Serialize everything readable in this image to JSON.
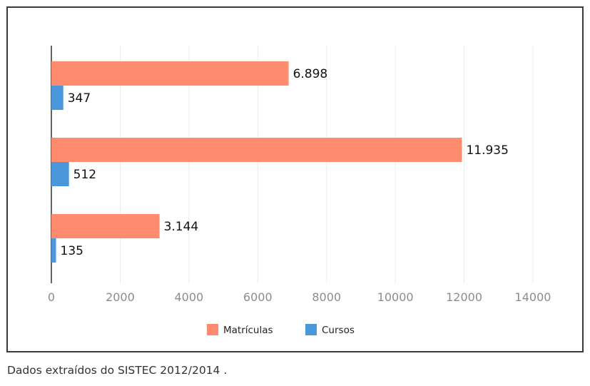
{
  "chart_data": {
    "type": "bar",
    "orientation": "horizontal",
    "title": "",
    "xlabel": "",
    "ylabel": "",
    "categories": [
      "",
      "",
      ""
    ],
    "series": [
      {
        "name": "Matrículas",
        "color": "#ff8c6e",
        "values": [
          6898,
          11935,
          3144
        ],
        "labels": [
          "6.898",
          "11.935",
          "3.144"
        ]
      },
      {
        "name": "Cursos",
        "color": "#4a98db",
        "values": [
          347,
          512,
          135
        ],
        "labels": [
          "347",
          "512",
          "135"
        ]
      }
    ],
    "xlim": [
      0,
      14000
    ],
    "xticks": [
      0,
      2000,
      4000,
      6000,
      8000,
      10000,
      12000,
      14000
    ],
    "xtick_labels": [
      "0",
      "2000",
      "4000",
      "6000",
      "8000",
      "10000",
      "12000",
      "14000"
    ],
    "grid": "vertical",
    "legend": "bottom-center"
  },
  "caption": "Dados extraídos do SISTEC 2012/2014 ."
}
